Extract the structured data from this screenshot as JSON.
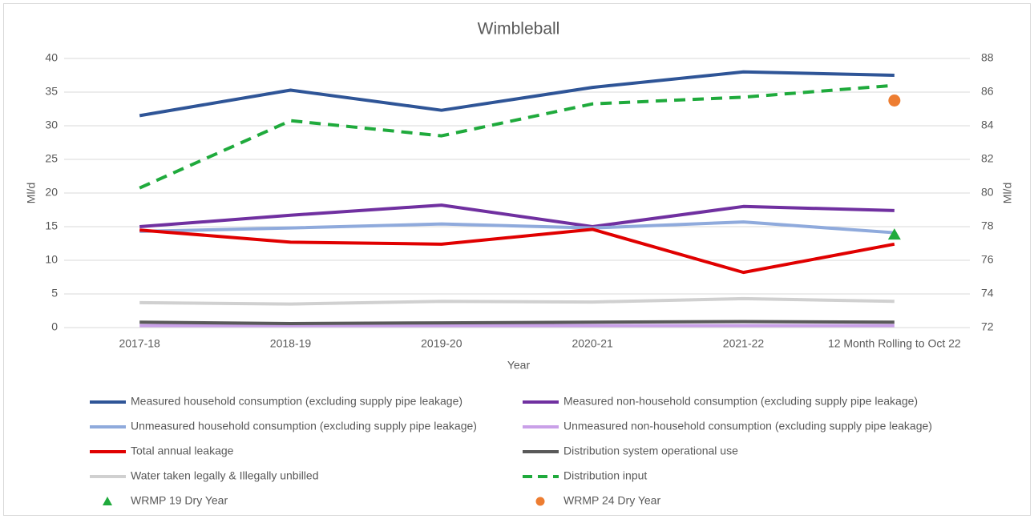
{
  "chart_data": {
    "type": "line",
    "title": "Wimbleball",
    "x_label": "Year",
    "y_label": "Ml/d",
    "y2_label": "Ml/d",
    "categories": [
      "2017-18",
      "2018-19",
      "2019-20",
      "2020-21",
      "2021-22",
      "12 Month Rolling to Oct 22"
    ],
    "ylim": [
      0,
      40
    ],
    "yticks": [
      0,
      5,
      10,
      15,
      20,
      25,
      30,
      35,
      40
    ],
    "y2lim": [
      72,
      88
    ],
    "y2ticks": [
      72,
      74,
      76,
      78,
      80,
      82,
      84,
      86,
      88
    ],
    "grid": true,
    "series": [
      {
        "name": "Measured household consumption (excluding supply pipe leakage)",
        "color": "#2f5597",
        "line_style": "solid",
        "values": [
          31.5,
          35.3,
          32.3,
          35.7,
          38.0,
          37.5
        ]
      },
      {
        "name": "Measured non-household consumption (excluding supply pipe leakage)",
        "color": "#7030a0",
        "line_style": "solid",
        "values": [
          15.0,
          16.7,
          18.2,
          15.0,
          18.0,
          17.4
        ]
      },
      {
        "name": "Unmeasured household consumption (excluding supply pipe leakage)",
        "color": "#8faadc",
        "line_style": "solid",
        "values": [
          14.3,
          14.8,
          15.4,
          14.8,
          15.7,
          14.1
        ]
      },
      {
        "name": "Unmeasured non-household consumption (excluding supply pipe leakage)",
        "color": "#c9a0e8",
        "line_style": "solid",
        "values": [
          0.3,
          0.3,
          0.3,
          0.3,
          0.3,
          0.3
        ]
      },
      {
        "name": "Total annual leakage",
        "color": "#e00000",
        "line_style": "solid",
        "values": [
          14.5,
          12.7,
          12.4,
          14.6,
          8.2,
          12.4
        ]
      },
      {
        "name": "Distribution system operational use",
        "color": "#595959",
        "line_style": "solid",
        "values": [
          0.8,
          0.6,
          0.7,
          0.8,
          0.9,
          0.8
        ]
      },
      {
        "name": "Water taken legally & Illegally unbilled",
        "color": "#d0d0d0",
        "line_style": "solid",
        "values": [
          3.7,
          3.5,
          3.9,
          3.8,
          4.3,
          3.9
        ]
      },
      {
        "name": "Distribution input",
        "color": "#1faa3c",
        "line_style": "dashed",
        "axis": "y2",
        "values": [
          80.3,
          84.3,
          83.4,
          85.3,
          85.7,
          86.4
        ]
      },
      {
        "name": "WRMP 19 Dry Year",
        "color": "#1faa3c",
        "line_style": "none",
        "marker": "triangle",
        "values": [
          null,
          null,
          null,
          null,
          null,
          13.8
        ]
      },
      {
        "name": "WRMP 24 Dry Year",
        "color": "#ed7d31",
        "line_style": "none",
        "marker": "circle",
        "axis": "y2",
        "values": [
          null,
          null,
          null,
          null,
          null,
          85.5
        ]
      }
    ]
  }
}
